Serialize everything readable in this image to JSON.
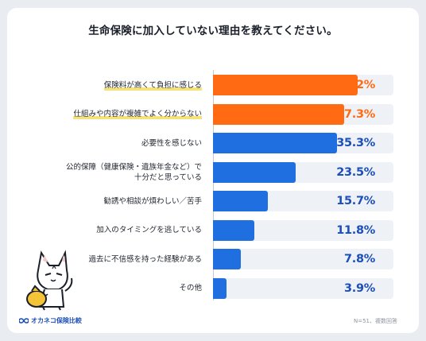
{
  "title": "生命保険に加入していない理由を教えてください。",
  "chart_data": {
    "type": "bar",
    "orientation": "horizontal",
    "title": "生命保険に加入していない理由を教えてください。",
    "xlim": [
      0,
      100
    ],
    "categories": [
      "保険料が高くて負担に感じる",
      "仕組みや内容が複雑でよく分からない",
      "必要性を感じない",
      "公的保障（健康保険・遺族年金など）で十分だと思っている",
      "勧誘や相談が煩わしい／苦手",
      "加入のタイミングを逃している",
      "過去に不信感を持った経験がある",
      "その他"
    ],
    "label_lines": [
      [
        "保険料が高くて負担に感じる"
      ],
      [
        "仕組みや内容が複雑でよく分からない"
      ],
      [
        "必要性を感じない"
      ],
      [
        "公的保障（健康保険・遺族年金など）で",
        "十分だと思っている"
      ],
      [
        "勧誘や相談が煩わしい／苦手"
      ],
      [
        "加入のタイミングを逃している"
      ],
      [
        "過去に不信感を持った経験がある"
      ],
      [
        "その他"
      ]
    ],
    "values": [
      41.2,
      37.3,
      35.3,
      23.5,
      15.7,
      11.8,
      7.8,
      3.9
    ],
    "value_labels": [
      "41.2%",
      "37.3%",
      "35.3%",
      "23.5%",
      "15.7%",
      "11.8%",
      "7.8%",
      "3.9%"
    ],
    "highlight": [
      true,
      true,
      false,
      false,
      false,
      false,
      false,
      false
    ],
    "colors": {
      "highlight": "#ff6a13",
      "normal": "#1f6fe0",
      "track": "#eef1f5"
    }
  },
  "footer": {
    "logo_text": "オカネコ保険比較",
    "note": "N=51、複数回答"
  },
  "icons": {
    "logo": "infinity-logo-icon",
    "mascot": "cat-mascot-icon"
  }
}
